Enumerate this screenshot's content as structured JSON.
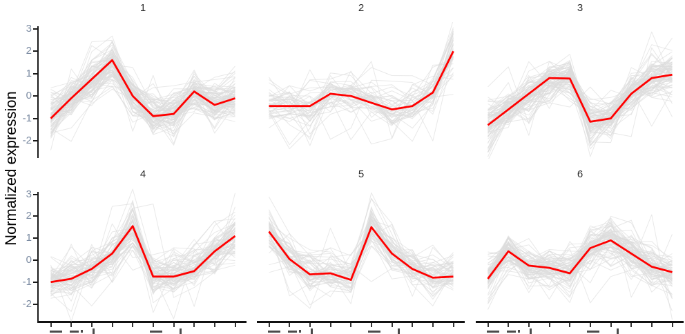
{
  "figure": {
    "y_axis_title": "Normalized expression",
    "y_tick_labels": [
      "3",
      "2",
      "1",
      "0",
      "-1",
      "-2"
    ],
    "x_axis": {
      "ticks_per_facet": 10,
      "labels_clipped": true
    }
  },
  "chart_data": {
    "type": "line",
    "layout": "2x3 facets (cluster profile plot: many grey member lines per facet + red centroid line)",
    "title": "",
    "xlabel": "",
    "ylabel": "Normalized expression",
    "ylim": [
      -2.8,
      3.3
    ],
    "y_ticks": [
      3,
      2,
      1,
      0,
      -1,
      -2
    ],
    "x": [
      1,
      2,
      3,
      4,
      5,
      6,
      7,
      8,
      9,
      10
    ],
    "x_tick_labels": [],
    "centroid_color": "#ff0000",
    "member_color": "#dcdcdc",
    "member_lines_per_facet": [
      85,
      45,
      80,
      70,
      55,
      75
    ],
    "facets": [
      {
        "label": "1",
        "centroid": [
          -1.0,
          -0.1,
          0.75,
          1.6,
          0.0,
          -0.9,
          -0.8,
          0.2,
          -0.4,
          -0.1
        ]
      },
      {
        "label": "2",
        "centroid": [
          -0.45,
          -0.45,
          -0.45,
          0.1,
          0.0,
          -0.3,
          -0.6,
          -0.45,
          0.15,
          2.0
        ]
      },
      {
        "label": "3",
        "centroid": [
          -1.3,
          -0.6,
          0.1,
          0.8,
          0.78,
          -1.15,
          -1.0,
          0.1,
          0.8,
          0.95
        ]
      },
      {
        "label": "4",
        "centroid": [
          -1.0,
          -0.85,
          -0.4,
          0.3,
          1.55,
          -0.75,
          -0.75,
          -0.5,
          0.4,
          1.1
        ]
      },
      {
        "label": "5",
        "centroid": [
          1.3,
          0.05,
          -0.65,
          -0.6,
          -0.9,
          1.5,
          0.3,
          -0.4,
          -0.8,
          -0.75
        ]
      },
      {
        "label": "6",
        "centroid": [
          -0.85,
          0.4,
          -0.25,
          -0.35,
          -0.6,
          0.55,
          0.9,
          0.3,
          -0.3,
          -0.55
        ]
      }
    ]
  }
}
